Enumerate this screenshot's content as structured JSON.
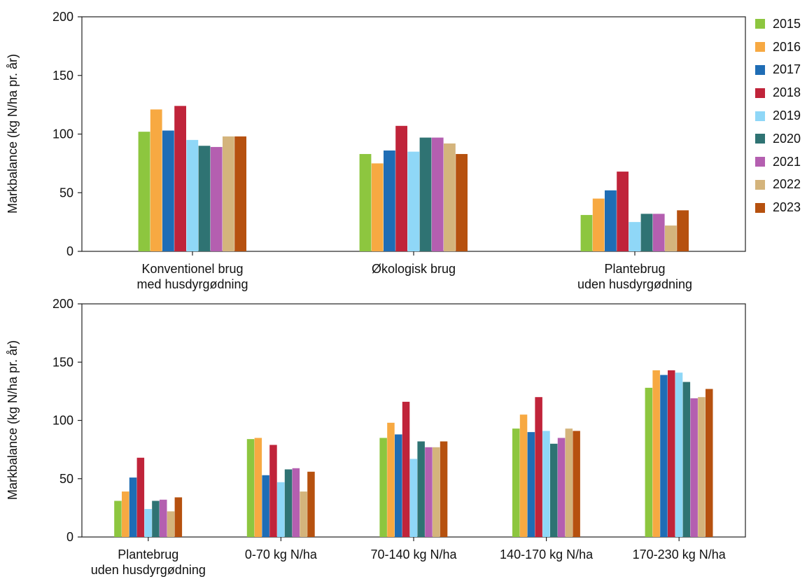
{
  "colors": {
    "2015": "#8dc63f",
    "2016": "#f7a942",
    "2017": "#1f6db5",
    "2018": "#c0243a",
    "2019": "#8fd7f7",
    "2020": "#2f7373",
    "2021": "#b45fb0",
    "2022": "#d4b47c",
    "2023": "#b6510f"
  },
  "legend": [
    "2015",
    "2016",
    "2017",
    "2018",
    "2019",
    "2020",
    "2021",
    "2022",
    "2023"
  ],
  "chart_data": [
    {
      "type": "bar",
      "ylabel": "Markbalance (kg N/ha pr. år)",
      "ylim": [
        0,
        200
      ],
      "yticks": [
        "0",
        "50",
        "100",
        "150",
        "200"
      ],
      "categories": [
        [
          "Konventionel brug",
          "med husdyrgødning"
        ],
        [
          "Økologisk brug"
        ],
        [
          "Plantebrug",
          "uden husdyrgødning"
        ]
      ],
      "series": [
        {
          "name": "2015",
          "values": [
            102,
            83,
            31
          ]
        },
        {
          "name": "2016",
          "values": [
            121,
            75,
            45
          ]
        },
        {
          "name": "2017",
          "values": [
            103,
            86,
            52
          ]
        },
        {
          "name": "2018",
          "values": [
            124,
            107,
            68
          ]
        },
        {
          "name": "2019",
          "values": [
            95,
            85,
            25
          ]
        },
        {
          "name": "2020",
          "values": [
            90,
            97,
            32
          ]
        },
        {
          "name": "2021",
          "values": [
            89,
            97,
            32
          ]
        },
        {
          "name": "2022",
          "values": [
            98,
            92,
            22
          ]
        },
        {
          "name": "2023",
          "values": [
            98,
            83,
            35
          ]
        }
      ],
      "legend_position": "right"
    },
    {
      "type": "bar",
      "ylabel": "Markbalance (kg N/ha pr. år)",
      "ylim": [
        0,
        200
      ],
      "yticks": [
        "0",
        "50",
        "100",
        "150",
        "200"
      ],
      "categories": [
        [
          "Plantebrug",
          "uden husdyrgødning"
        ],
        [
          "0-70 kg N/ha"
        ],
        [
          "70-140 kg N/ha"
        ],
        [
          "140-170 kg N/ha"
        ],
        [
          "170-230 kg N/ha"
        ]
      ],
      "series": [
        {
          "name": "2015",
          "values": [
            31,
            84,
            85,
            93,
            128
          ]
        },
        {
          "name": "2016",
          "values": [
            39,
            85,
            98,
            105,
            143
          ]
        },
        {
          "name": "2017",
          "values": [
            51,
            53,
            88,
            90,
            139
          ]
        },
        {
          "name": "2018",
          "values": [
            68,
            79,
            116,
            120,
            143
          ]
        },
        {
          "name": "2019",
          "values": [
            24,
            47,
            67,
            91,
            141
          ]
        },
        {
          "name": "2020",
          "values": [
            31,
            58,
            82,
            80,
            133
          ]
        },
        {
          "name": "2021",
          "values": [
            32,
            59,
            77,
            85,
            119
          ]
        },
        {
          "name": "2022",
          "values": [
            22,
            39,
            77,
            93,
            120
          ]
        },
        {
          "name": "2023",
          "values": [
            34,
            56,
            82,
            91,
            127
          ]
        }
      ]
    }
  ]
}
